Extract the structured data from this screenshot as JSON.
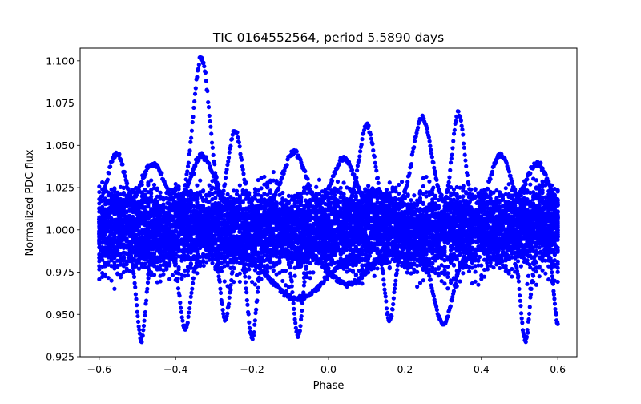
{
  "chart_data": {
    "type": "scatter",
    "title": "TIC 0164552564, period 5.5890 days",
    "xlabel": "Phase",
    "ylabel": "Normalized PDC flux",
    "xlim": [
      -0.65,
      0.65
    ],
    "ylim": [
      0.925,
      1.1075
    ],
    "x_ticks": [
      -0.6,
      -0.4,
      -0.2,
      0.0,
      0.2,
      0.4,
      0.6
    ],
    "x_tick_labels": [
      "−0.6",
      "−0.4",
      "−0.2",
      "0.0",
      "0.2",
      "0.4",
      "0.6"
    ],
    "y_ticks": [
      0.925,
      0.95,
      0.975,
      1.0,
      1.025,
      1.05,
      1.075,
      1.1
    ],
    "y_tick_labels": [
      "0.925",
      "0.950",
      "0.975",
      "1.000",
      "1.025",
      "1.050",
      "1.075",
      "1.100"
    ],
    "grid": false,
    "series": [
      {
        "color": "#0000ff",
        "marker": "circle",
        "phase_range": [
          -0.6,
          0.6
        ],
        "baseline_flux": 1.0,
        "baseline_scatter": 0.02,
        "features": [
          {
            "kind": "peak",
            "center": -0.333,
            "flux": 1.102,
            "width": 0.022
          },
          {
            "kind": "peak",
            "center": -0.245,
            "flux": 1.059,
            "width": 0.018
          },
          {
            "kind": "peak",
            "center": 0.1,
            "flux": 1.062,
            "width": 0.02
          },
          {
            "kind": "peak",
            "center": 0.245,
            "flux": 1.066,
            "width": 0.025
          },
          {
            "kind": "peak",
            "center": 0.34,
            "flux": 1.069,
            "width": 0.016
          },
          {
            "kind": "peak",
            "center": -0.555,
            "flux": 1.045,
            "width": 0.022
          },
          {
            "kind": "peak",
            "center": -0.46,
            "flux": 1.039,
            "width": 0.03
          },
          {
            "kind": "peak",
            "center": -0.33,
            "flux": 1.044,
            "width": 0.03
          },
          {
            "kind": "peak",
            "center": -0.09,
            "flux": 1.046,
            "width": 0.03
          },
          {
            "kind": "peak",
            "center": 0.04,
            "flux": 1.042,
            "width": 0.03
          },
          {
            "kind": "peak",
            "center": 0.45,
            "flux": 1.045,
            "width": 0.025
          },
          {
            "kind": "peak",
            "center": 0.545,
            "flux": 1.039,
            "width": 0.03
          },
          {
            "kind": "dip",
            "center": -0.49,
            "flux": 0.935,
            "width": 0.012
          },
          {
            "kind": "dip",
            "center": -0.375,
            "flux": 0.942,
            "width": 0.015
          },
          {
            "kind": "dip",
            "center": -0.27,
            "flux": 0.947,
            "width": 0.012
          },
          {
            "kind": "dip",
            "center": -0.2,
            "flux": 0.936,
            "width": 0.012
          },
          {
            "kind": "dip",
            "center": -0.08,
            "flux": 0.937,
            "width": 0.012
          },
          {
            "kind": "dip",
            "center": -0.08,
            "flux": 0.959,
            "width": 0.07
          },
          {
            "kind": "dip",
            "center": 0.05,
            "flux": 0.968,
            "width": 0.05
          },
          {
            "kind": "dip",
            "center": 0.16,
            "flux": 0.946,
            "width": 0.012
          },
          {
            "kind": "dip",
            "center": 0.3,
            "flux": 0.944,
            "width": 0.025
          },
          {
            "kind": "dip",
            "center": 0.515,
            "flux": 0.934,
            "width": 0.012
          },
          {
            "kind": "dip",
            "center": 0.6,
            "flux": 0.945,
            "width": 0.01
          }
        ]
      }
    ]
  }
}
